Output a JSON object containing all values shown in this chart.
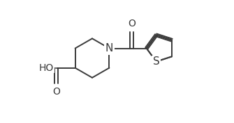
{
  "bg_color": "#ffffff",
  "line_color": "#3a3a3a",
  "text_color": "#3a3a3a",
  "bond_lw": 1.4,
  "font_size": 10,
  "label_N": "N",
  "label_S": "S",
  "label_O1": "O",
  "label_O2": "O",
  "label_HO": "HO"
}
